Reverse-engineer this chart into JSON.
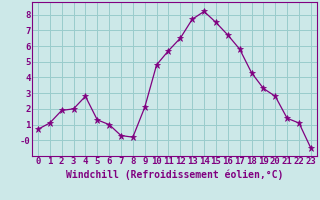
{
  "x": [
    0,
    1,
    2,
    3,
    4,
    5,
    6,
    7,
    8,
    9,
    10,
    11,
    12,
    13,
    14,
    15,
    16,
    17,
    18,
    19,
    20,
    21,
    22,
    23
  ],
  "y": [
    0.7,
    1.1,
    1.9,
    2.0,
    2.8,
    1.3,
    1.0,
    0.3,
    0.2,
    2.1,
    4.8,
    5.7,
    6.5,
    7.7,
    8.2,
    7.5,
    6.7,
    5.8,
    4.3,
    3.3,
    2.8,
    1.4,
    1.1,
    -0.5
  ],
  "line_color": "#800080",
  "marker": "*",
  "marker_color": "#800080",
  "bg_color": "#cce8e8",
  "grid_color": "#99cccc",
  "xlabel": "Windchill (Refroidissement éolien,°C)",
  "xlabel_color": "#800080",
  "tick_color": "#800080",
  "spine_color": "#800080",
  "ylim": [
    -1.0,
    8.8
  ],
  "xlim": [
    -0.5,
    23.5
  ],
  "yticks": [
    0,
    1,
    2,
    3,
    4,
    5,
    6,
    7,
    8
  ],
  "ytick_labels": [
    "-0",
    "1",
    "2",
    "3",
    "4",
    "5",
    "6",
    "7",
    "8"
  ],
  "xticks": [
    0,
    1,
    2,
    3,
    4,
    5,
    6,
    7,
    8,
    9,
    10,
    11,
    12,
    13,
    14,
    15,
    16,
    17,
    18,
    19,
    20,
    21,
    22,
    23
  ],
  "tick_fontsize": 6.5,
  "xlabel_fontsize": 7.0
}
